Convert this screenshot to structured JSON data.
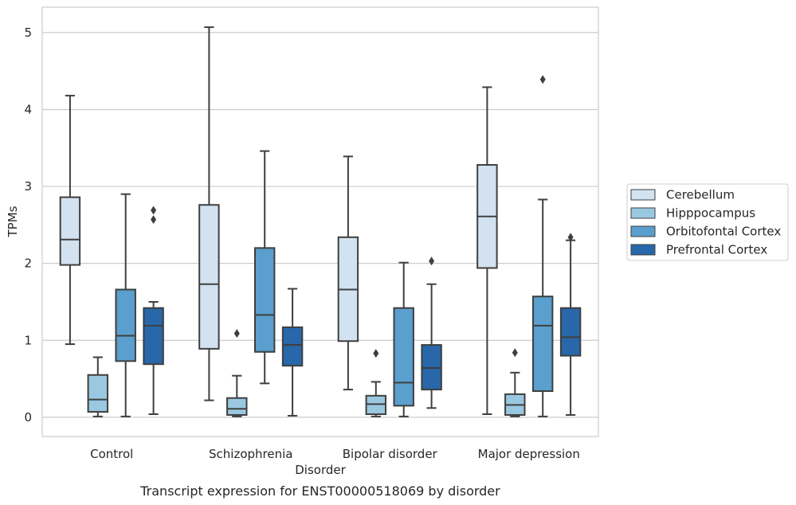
{
  "caption": "Transcript expression for ENST00000518069 by disorder",
  "chart_data": {
    "type": "box",
    "categories": [
      "Control",
      "Schizophrenia",
      "Bipolar disorder",
      "Major depression"
    ],
    "xlabel": "Disorder",
    "ylabel": "TPMs",
    "ylim": [
      -0.25,
      5.33
    ],
    "yticks": [
      "0",
      "1",
      "2",
      "3",
      "4",
      "5"
    ],
    "grid": "horizontal",
    "legend_position": "right",
    "series": [
      {
        "name": "Cerebellum",
        "color": "#d2e2f0",
        "boxes": [
          {
            "whislo": 0.95,
            "q1": 1.98,
            "med": 2.31,
            "q3": 2.86,
            "whishi": 4.18,
            "fliers": []
          },
          {
            "whislo": 0.22,
            "q1": 0.89,
            "med": 1.73,
            "q3": 2.76,
            "whishi": 5.07,
            "fliers": []
          },
          {
            "whislo": 0.36,
            "q1": 0.99,
            "med": 1.66,
            "q3": 2.34,
            "whishi": 3.39,
            "fliers": []
          },
          {
            "whislo": 0.04,
            "q1": 1.94,
            "med": 2.61,
            "q3": 3.28,
            "whishi": 4.29,
            "fliers": []
          }
        ]
      },
      {
        "name": "Hipppocampus",
        "color": "#9ac8e0",
        "boxes": [
          {
            "whislo": 0.01,
            "q1": 0.07,
            "med": 0.23,
            "q3": 0.55,
            "whishi": 0.78,
            "fliers": []
          },
          {
            "whislo": 0.01,
            "q1": 0.03,
            "med": 0.11,
            "q3": 0.25,
            "whishi": 0.54,
            "fliers": [
              1.09
            ]
          },
          {
            "whislo": 0.01,
            "q1": 0.04,
            "med": 0.17,
            "q3": 0.28,
            "whishi": 0.46,
            "fliers": [
              0.83
            ]
          },
          {
            "whislo": 0.01,
            "q1": 0.03,
            "med": 0.16,
            "q3": 0.3,
            "whishi": 0.58,
            "fliers": [
              0.84
            ]
          }
        ]
      },
      {
        "name": "Orbitofontal Cortex",
        "color": "#5a9fcd",
        "boxes": [
          {
            "whislo": 0.01,
            "q1": 0.73,
            "med": 1.06,
            "q3": 1.66,
            "whishi": 2.9,
            "fliers": []
          },
          {
            "whislo": 0.44,
            "q1": 0.85,
            "med": 1.33,
            "q3": 2.2,
            "whishi": 3.46,
            "fliers": []
          },
          {
            "whislo": 0.01,
            "q1": 0.15,
            "med": 0.45,
            "q3": 1.42,
            "whishi": 2.01,
            "fliers": []
          },
          {
            "whislo": 0.01,
            "q1": 0.34,
            "med": 1.19,
            "q3": 1.57,
            "whishi": 2.83,
            "fliers": [
              4.39
            ]
          }
        ]
      },
      {
        "name": "Prefrontal Cortex",
        "color": "#2767aa",
        "boxes": [
          {
            "whislo": 0.04,
            "q1": 0.69,
            "med": 1.19,
            "q3": 1.42,
            "whishi": 1.5,
            "fliers": [
              2.57,
              2.69
            ]
          },
          {
            "whislo": 0.02,
            "q1": 0.67,
            "med": 0.94,
            "q3": 1.17,
            "whishi": 1.67,
            "fliers": []
          },
          {
            "whislo": 0.12,
            "q1": 0.36,
            "med": 0.64,
            "q3": 0.94,
            "whishi": 1.73,
            "fliers": [
              2.03
            ]
          },
          {
            "whislo": 0.03,
            "q1": 0.8,
            "med": 1.04,
            "q3": 1.42,
            "whishi": 2.3,
            "fliers": [
              2.34
            ]
          }
        ]
      }
    ]
  }
}
